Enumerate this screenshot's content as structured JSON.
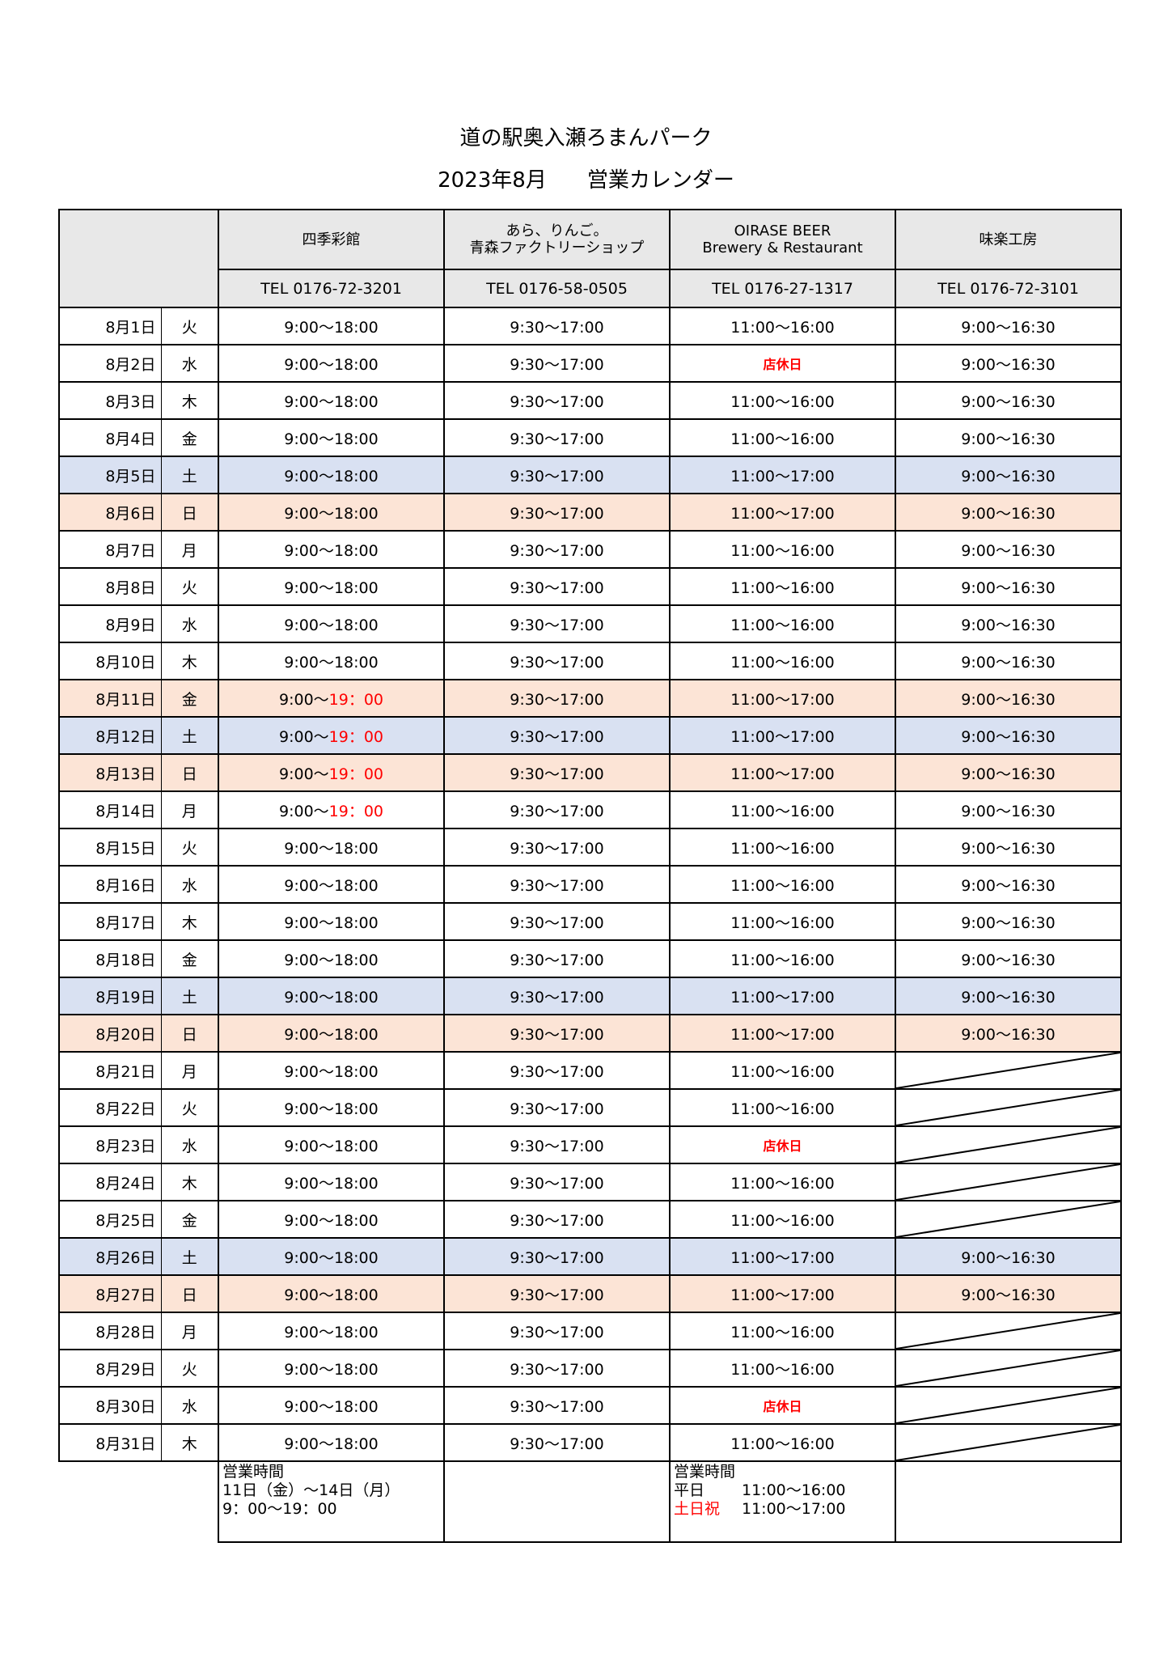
{
  "title": "道の駅奥入瀬ろまんパーク",
  "subtitle_month": "2023年8月",
  "subtitle_label": "営業カレンダー",
  "colors": {
    "saturday_row": "#d9e1f2",
    "sunday_holiday_row": "#fce4d6",
    "header": "#e8e8e8",
    "highlight_text": "#ff0000"
  },
  "shops": [
    {
      "name_lines": [
        "四季彩館"
      ],
      "tel": "TEL 0176-72-3201"
    },
    {
      "name_lines": [
        "あら、りんご。",
        "青森ファクトリーショップ"
      ],
      "tel": "TEL 0176-58-0505"
    },
    {
      "name_lines": [
        "OIRASE BEER",
        "Brewery & Restaurant"
      ],
      "tel": "TEL 0176-27-1317"
    },
    {
      "name_lines": [
        "味楽工房"
      ],
      "tel": "TEL 0176-72-3101"
    }
  ],
  "rows": [
    {
      "date": "8月1日",
      "dow": "火",
      "type": "weekday",
      "c1": "9:00〜18:00",
      "c2": "9:30〜17:00",
      "c3": "11:00〜16:00",
      "c4": "9:00〜16:30"
    },
    {
      "date": "8月2日",
      "dow": "水",
      "type": "weekday",
      "c1": "9:00〜18:00",
      "c2": "9:30〜17:00",
      "c3": "店休日",
      "c3_closed": true,
      "c4": "9:00〜16:30"
    },
    {
      "date": "8月3日",
      "dow": "木",
      "type": "weekday",
      "c1": "9:00〜18:00",
      "c2": "9:30〜17:00",
      "c3": "11:00〜16:00",
      "c4": "9:00〜16:30"
    },
    {
      "date": "8月4日",
      "dow": "金",
      "type": "weekday",
      "c1": "9:00〜18:00",
      "c2": "9:30〜17:00",
      "c3": "11:00〜16:00",
      "c4": "9:00〜16:30"
    },
    {
      "date": "8月5日",
      "dow": "土",
      "type": "sat",
      "c1": "9:00〜18:00",
      "c2": "9:30〜17:00",
      "c3": "11:00〜17:00",
      "c4": "9:00〜16:30"
    },
    {
      "date": "8月6日",
      "dow": "日",
      "type": "sun",
      "c1": "9:00〜18:00",
      "c2": "9:30〜17:00",
      "c3": "11:00〜17:00",
      "c4": "9:00〜16:30"
    },
    {
      "date": "8月7日",
      "dow": "月",
      "type": "weekday",
      "c1": "9:00〜18:00",
      "c2": "9:30〜17:00",
      "c3": "11:00〜16:00",
      "c4": "9:00〜16:30"
    },
    {
      "date": "8月8日",
      "dow": "火",
      "type": "weekday",
      "c1": "9:00〜18:00",
      "c2": "9:30〜17:00",
      "c3": "11:00〜16:00",
      "c4": "9:00〜16:30"
    },
    {
      "date": "8月9日",
      "dow": "水",
      "type": "weekday",
      "c1": "9:00〜18:00",
      "c2": "9:30〜17:00",
      "c3": "11:00〜16:00",
      "c4": "9:00〜16:30"
    },
    {
      "date": "8月10日",
      "dow": "木",
      "type": "weekday",
      "c1": "9:00〜18:00",
      "c2": "9:30〜17:00",
      "c3": "11:00〜16:00",
      "c4": "9:00〜16:30"
    },
    {
      "date": "8月11日",
      "dow": "金",
      "type": "sun",
      "c1": "9:00〜",
      "c1_red": "19：00",
      "c2": "9:30〜17:00",
      "c3": "11:00〜17:00",
      "c4": "9:00〜16:30"
    },
    {
      "date": "8月12日",
      "dow": "土",
      "type": "sat",
      "c1": "9:00〜",
      "c1_red": "19：00",
      "c2": "9:30〜17:00",
      "c3": "11:00〜17:00",
      "c4": "9:00〜16:30"
    },
    {
      "date": "8月13日",
      "dow": "日",
      "type": "sun",
      "c1": "9:00〜",
      "c1_red": "19：00",
      "c2": "9:30〜17:00",
      "c3": "11:00〜17:00",
      "c4": "9:00〜16:30"
    },
    {
      "date": "8月14日",
      "dow": "月",
      "type": "weekday",
      "c1": "9:00〜",
      "c1_red": "19：00",
      "c2": "9:30〜17:00",
      "c3": "11:00〜16:00",
      "c4": "9:00〜16:30"
    },
    {
      "date": "8月15日",
      "dow": "火",
      "type": "weekday",
      "c1": "9:00〜18:00",
      "c2": "9:30〜17:00",
      "c3": "11:00〜16:00",
      "c4": "9:00〜16:30"
    },
    {
      "date": "8月16日",
      "dow": "水",
      "type": "weekday",
      "c1": "9:00〜18:00",
      "c2": "9:30〜17:00",
      "c3": "11:00〜16:00",
      "c4": "9:00〜16:30"
    },
    {
      "date": "8月17日",
      "dow": "木",
      "type": "weekday",
      "c1": "9:00〜18:00",
      "c2": "9:30〜17:00",
      "c3": "11:00〜16:00",
      "c4": "9:00〜16:30"
    },
    {
      "date": "8月18日",
      "dow": "金",
      "type": "weekday",
      "c1": "9:00〜18:00",
      "c2": "9:30〜17:00",
      "c3": "11:00〜16:00",
      "c4": "9:00〜16:30"
    },
    {
      "date": "8月19日",
      "dow": "土",
      "type": "sat",
      "c1": "9:00〜18:00",
      "c2": "9:30〜17:00",
      "c3": "11:00〜17:00",
      "c4": "9:00〜16:30"
    },
    {
      "date": "8月20日",
      "dow": "日",
      "type": "sun",
      "c1": "9:00〜18:00",
      "c2": "9:30〜17:00",
      "c3": "11:00〜17:00",
      "c4": "9:00〜16:30"
    },
    {
      "date": "8月21日",
      "dow": "月",
      "type": "weekday",
      "c1": "9:00〜18:00",
      "c2": "9:30〜17:00",
      "c3": "11:00〜16:00",
      "c4": null
    },
    {
      "date": "8月22日",
      "dow": "火",
      "type": "weekday",
      "c1": "9:00〜18:00",
      "c2": "9:30〜17:00",
      "c3": "11:00〜16:00",
      "c4": null
    },
    {
      "date": "8月23日",
      "dow": "水",
      "type": "weekday",
      "c1": "9:00〜18:00",
      "c2": "9:30〜17:00",
      "c3": "店休日",
      "c3_closed": true,
      "c4": null
    },
    {
      "date": "8月24日",
      "dow": "木",
      "type": "weekday",
      "c1": "9:00〜18:00",
      "c2": "9:30〜17:00",
      "c3": "11:00〜16:00",
      "c4": null
    },
    {
      "date": "8月25日",
      "dow": "金",
      "type": "weekday",
      "c1": "9:00〜18:00",
      "c2": "9:30〜17:00",
      "c3": "11:00〜16:00",
      "c4": null
    },
    {
      "date": "8月26日",
      "dow": "土",
      "type": "sat",
      "c1": "9:00〜18:00",
      "c2": "9:30〜17:00",
      "c3": "11:00〜17:00",
      "c4": "9:00〜16:30"
    },
    {
      "date": "8月27日",
      "dow": "日",
      "type": "sun",
      "c1": "9:00〜18:00",
      "c2": "9:30〜17:00",
      "c3": "11:00〜17:00",
      "c4": "9:00〜16:30"
    },
    {
      "date": "8月28日",
      "dow": "月",
      "type": "weekday",
      "c1": "9:00〜18:00",
      "c2": "9:30〜17:00",
      "c3": "11:00〜16:00",
      "c4": null
    },
    {
      "date": "8月29日",
      "dow": "火",
      "type": "weekday",
      "c1": "9:00〜18:00",
      "c2": "9:30〜17:00",
      "c3": "11:00〜16:00",
      "c4": null
    },
    {
      "date": "8月30日",
      "dow": "水",
      "type": "weekday",
      "c1": "9:00〜18:00",
      "c2": "9:30〜17:00",
      "c3": "店休日",
      "c3_closed": true,
      "c4": null
    },
    {
      "date": "8月31日",
      "dow": "木",
      "type": "weekday",
      "c1": "9:00〜18:00",
      "c2": "9:30〜17:00",
      "c3": "11:00〜16:00",
      "c4": null
    }
  ],
  "footnotes": {
    "shop1": {
      "heading": "営業時間",
      "line1": "11日（金）〜14日（月）",
      "line2": "9：00〜19：00"
    },
    "shop3": {
      "heading": "営業時間",
      "weekday_label": "平日",
      "weekday_hours": "11:00〜16:00",
      "holiday_label": "土日祝",
      "holiday_hours": "11:00〜17:00"
    }
  }
}
